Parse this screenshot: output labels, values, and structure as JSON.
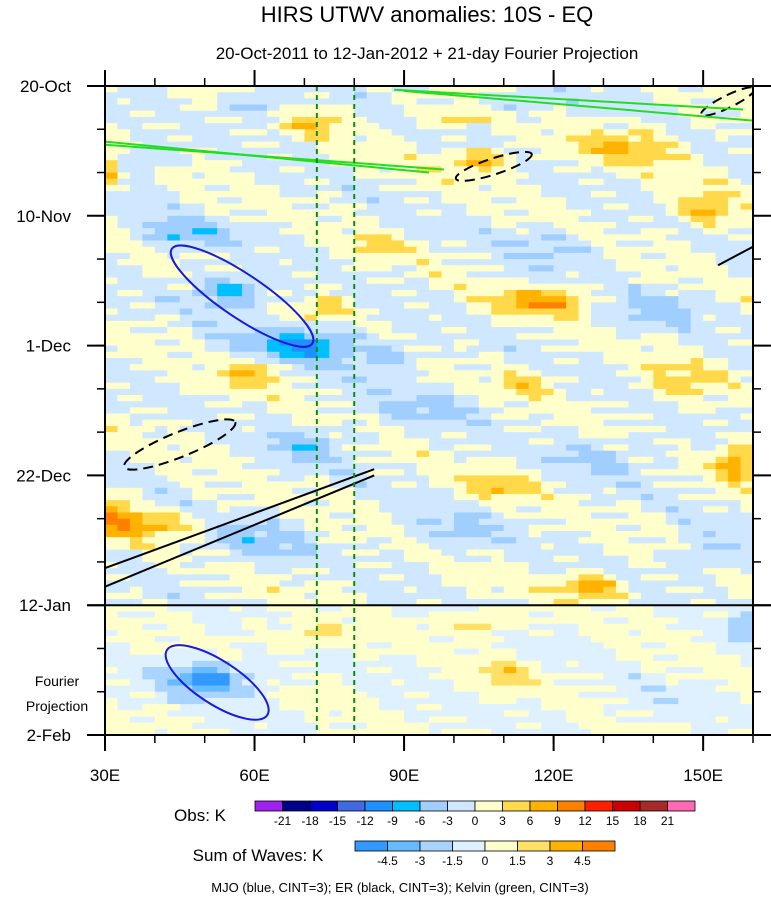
{
  "chart_data": {
    "type": "heatmap",
    "title": "HIRS UTWV anomalies: 10S - EQ",
    "subtitle": "20-Oct-2011 to 12-Jan-2012 + 21-day Fourier Projection",
    "x_axis": {
      "range": [
        30,
        160
      ],
      "ticks": [
        {
          "value": 30,
          "label": "30E"
        },
        {
          "value": 60,
          "label": "60E"
        },
        {
          "value": 90,
          "label": "90E"
        },
        {
          "value": 120,
          "label": "120E"
        },
        {
          "value": 150,
          "label": "150E"
        }
      ]
    },
    "y_axis": {
      "range_days": [
        0,
        105
      ],
      "ticks": [
        {
          "day": 0,
          "label": "20-Oct"
        },
        {
          "day": 21,
          "label": "10-Nov"
        },
        {
          "day": 42,
          "label": "1-Dec"
        },
        {
          "day": 63,
          "label": "22-Dec"
        },
        {
          "day": 84,
          "label": "12-Jan"
        },
        {
          "day": 105,
          "label": "2-Feb"
        }
      ],
      "minor_tick_step_days": 7
    },
    "projection_label_line1": "Fourier",
    "projection_label_line2": "Projection",
    "observation_end_day": 84,
    "reference_longitudes": [
      72.5,
      80
    ],
    "obs_legend": {
      "title": "Obs: K",
      "levels": [
        "-21",
        "-18",
        "-15",
        "-12",
        "-9",
        "-6",
        "-3",
        "0",
        "3",
        "6",
        "9",
        "12",
        "15",
        "18",
        "21"
      ],
      "colors": [
        "#a020f0",
        "#00008b",
        "#0000cd",
        "#4169e1",
        "#1e90ff",
        "#00bfff",
        "#a0cfff",
        "#cfe8ff",
        "#ffffcc",
        "#ffd94a",
        "#ffb300",
        "#ff8000",
        "#ff2000",
        "#cc0000",
        "#a52a2a",
        "#ff69b4"
      ]
    },
    "waves_legend": {
      "title": "Sum of Waves: K",
      "levels": [
        "-4.5",
        "-3",
        "-1.5",
        "0",
        "1.5",
        "3",
        "4.5"
      ],
      "colors": [
        "#3399ff",
        "#66bbff",
        "#a8d4ff",
        "#dff0ff",
        "#ffffcc",
        "#ffe066",
        "#ffb300",
        "#ff8000"
      ]
    },
    "caption": "MJO (blue, CINT=3); ER (black, CINT=3); Kelvin (green, CINT=3)",
    "contours": {
      "mjo": [
        {
          "lon": 57.5,
          "day": 34,
          "half_len_lon": 17,
          "angle_deg": 34,
          "minor_days": 3.5
        },
        {
          "lon": 52.5,
          "day": 96.5,
          "half_len_lon": 12,
          "angle_deg": 33,
          "minor_days": 3.5
        }
      ],
      "er_solid": [
        {
          "from": [
            30,
            81
          ],
          "to": [
            84,
            63
          ]
        },
        {
          "from": [
            30,
            78
          ],
          "to": [
            84,
            62
          ]
        },
        {
          "from": [
            153,
            29
          ],
          "to": [
            160,
            26
          ]
        }
      ],
      "er_dashed": [
        {
          "lon": 45,
          "day": 58,
          "half_len_lon": 12,
          "angle_deg": -22,
          "minor_days": 2
        },
        {
          "lon": 108,
          "day": 13,
          "half_len_lon": 8,
          "angle_deg": -18,
          "minor_days": 1.3
        },
        {
          "lon": 155,
          "day": 2.5,
          "half_len_lon": 6,
          "angle_deg": -26,
          "minor_days": 1
        }
      ],
      "kelvin": [
        {
          "from": [
            30,
            9
          ],
          "to": [
            95,
            14
          ]
        },
        {
          "from": [
            30,
            9.5
          ],
          "to": [
            98,
            13.5
          ]
        },
        {
          "from": [
            90,
            0.8
          ],
          "to": [
            160,
            5.6
          ]
        },
        {
          "from": [
            88,
            0.6
          ],
          "to": [
            158,
            3.8
          ]
        }
      ]
    }
  }
}
